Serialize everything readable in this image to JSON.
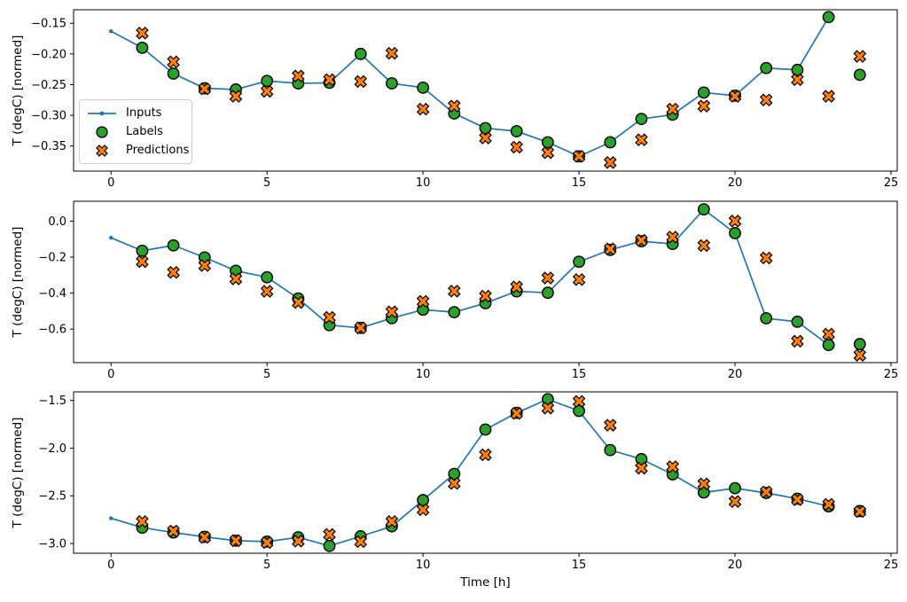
{
  "figure": {
    "background": "#ffffff",
    "xlabel": "Time [h]",
    "x_ticks": [
      "0",
      "5",
      "10",
      "15",
      "20",
      "25"
    ],
    "x_tick_values": [
      0,
      5,
      10,
      15,
      20,
      25
    ],
    "xlim": [
      -1.2,
      25.2
    ],
    "grid": false,
    "legend_position": "upper-left-area of first subplot"
  },
  "colors": {
    "inputs": "#1f77b4",
    "labels": "#2ca02c",
    "predictions": "#ff7f0e",
    "marker_edge": "#000000",
    "spine": "#000000",
    "legend_border": "#cccccc"
  },
  "legend": {
    "items": [
      {
        "label": "Inputs",
        "marker": "line-with-dot",
        "color": "#1f77b4"
      },
      {
        "label": "Labels",
        "marker": "circle",
        "color": "#2ca02c"
      },
      {
        "label": "Predictions",
        "marker": "X",
        "color": "#ff7f0e"
      }
    ]
  },
  "chart_data": [
    {
      "type": "line",
      "ylabel": "T (degC) [normed]",
      "ylim": [
        -0.391,
        -0.128
      ],
      "yticks": [
        -0.15,
        -0.2,
        -0.25,
        -0.3,
        -0.35
      ],
      "ytick_labels": [
        "−0.15",
        "−0.20",
        "−0.25",
        "−0.30",
        "−0.35"
      ],
      "series": [
        {
          "name": "Inputs",
          "type": "line",
          "marker": "dot",
          "color": "#1f77b4",
          "x": [
            0,
            1,
            2,
            3,
            4,
            5,
            6,
            7,
            8,
            9,
            10,
            11,
            12,
            13,
            14,
            15,
            16,
            17,
            18,
            19,
            20,
            21,
            22,
            23
          ],
          "y": [
            -0.163,
            -0.19,
            -0.232,
            -0.256,
            -0.258,
            -0.244,
            -0.248,
            -0.247,
            -0.2,
            -0.248,
            -0.255,
            -0.297,
            -0.321,
            -0.326,
            -0.344,
            -0.367,
            -0.344,
            -0.306,
            -0.299,
            -0.263,
            -0.268,
            -0.223,
            -0.226,
            -0.14
          ]
        },
        {
          "name": "Labels",
          "type": "scatter",
          "marker": "circle",
          "color": "#2ca02c",
          "x": [
            1,
            2,
            3,
            4,
            5,
            6,
            7,
            8,
            9,
            10,
            11,
            12,
            13,
            14,
            15,
            16,
            17,
            18,
            19,
            20,
            21,
            22,
            23,
            24
          ],
          "y": [
            -0.19,
            -0.232,
            -0.256,
            -0.258,
            -0.244,
            -0.248,
            -0.247,
            -0.2,
            -0.248,
            -0.255,
            -0.297,
            -0.321,
            -0.326,
            -0.344,
            -0.367,
            -0.344,
            -0.306,
            -0.299,
            -0.263,
            -0.268,
            -0.223,
            -0.226,
            -0.14,
            -0.234
          ]
        },
        {
          "name": "Predictions",
          "type": "scatter",
          "marker": "X",
          "color": "#ff7f0e",
          "x": [
            1,
            2,
            3,
            4,
            5,
            6,
            7,
            8,
            9,
            10,
            11,
            12,
            13,
            14,
            15,
            16,
            17,
            18,
            19,
            20,
            21,
            22,
            23,
            24
          ],
          "y": [
            -0.166,
            -0.213,
            -0.257,
            -0.269,
            -0.261,
            -0.236,
            -0.242,
            -0.245,
            -0.199,
            -0.29,
            -0.285,
            -0.337,
            -0.352,
            -0.361,
            -0.367,
            -0.377,
            -0.34,
            -0.29,
            -0.285,
            -0.269,
            -0.275,
            -0.242,
            -0.269,
            -0.204
          ]
        }
      ]
    },
    {
      "type": "line",
      "ylabel": "T (degC) [normed]",
      "ylim": [
        -0.786,
        0.11
      ],
      "yticks": [
        0.0,
        -0.2,
        -0.4,
        -0.6
      ],
      "ytick_labels": [
        "0.0",
        "−0.2",
        "−0.4",
        "−0.6"
      ],
      "series": [
        {
          "name": "Inputs",
          "type": "line",
          "marker": "dot",
          "color": "#1f77b4",
          "x": [
            0,
            1,
            2,
            3,
            4,
            5,
            6,
            7,
            8,
            9,
            10,
            11,
            12,
            13,
            14,
            15,
            16,
            17,
            18,
            19,
            20,
            21,
            22,
            23
          ],
          "y": [
            -0.093,
            -0.165,
            -0.135,
            -0.202,
            -0.276,
            -0.312,
            -0.43,
            -0.578,
            -0.593,
            -0.539,
            -0.492,
            -0.506,
            -0.456,
            -0.39,
            -0.398,
            -0.226,
            -0.16,
            -0.112,
            -0.127,
            0.065,
            -0.067,
            -0.54,
            -0.559,
            -0.688
          ]
        },
        {
          "name": "Labels",
          "type": "scatter",
          "marker": "circle",
          "color": "#2ca02c",
          "x": [
            1,
            2,
            3,
            4,
            5,
            6,
            7,
            8,
            9,
            10,
            11,
            12,
            13,
            14,
            15,
            16,
            17,
            18,
            19,
            20,
            21,
            22,
            23,
            24
          ],
          "y": [
            -0.165,
            -0.135,
            -0.202,
            -0.276,
            -0.312,
            -0.43,
            -0.578,
            -0.593,
            -0.539,
            -0.492,
            -0.506,
            -0.456,
            -0.39,
            -0.398,
            -0.226,
            -0.16,
            -0.112,
            -0.127,
            0.065,
            -0.067,
            -0.54,
            -0.559,
            -0.688,
            -0.683
          ]
        },
        {
          "name": "Predictions",
          "type": "scatter",
          "marker": "X",
          "color": "#ff7f0e",
          "x": [
            1,
            2,
            3,
            4,
            5,
            6,
            7,
            8,
            9,
            10,
            11,
            12,
            13,
            14,
            15,
            16,
            17,
            18,
            19,
            20,
            21,
            22,
            23,
            24
          ],
          "y": [
            -0.225,
            -0.285,
            -0.247,
            -0.321,
            -0.39,
            -0.452,
            -0.535,
            -0.593,
            -0.504,
            -0.446,
            -0.389,
            -0.417,
            -0.366,
            -0.316,
            -0.325,
            -0.155,
            -0.107,
            -0.089,
            -0.136,
            0.0,
            -0.205,
            -0.667,
            -0.628,
            -0.745
          ]
        }
      ]
    },
    {
      "type": "line",
      "ylabel": "T (degC) [normed]",
      "ylim": [
        -3.102,
        -1.41
      ],
      "yticks": [
        -1.5,
        -2.0,
        -2.5,
        -3.0
      ],
      "ytick_labels": [
        "−1.5",
        "−2.0",
        "−2.5",
        "−3.0"
      ],
      "series": [
        {
          "name": "Inputs",
          "type": "line",
          "marker": "dot",
          "color": "#1f77b4",
          "x": [
            0,
            1,
            2,
            3,
            4,
            5,
            6,
            7,
            8,
            9,
            10,
            11,
            12,
            13,
            14,
            15,
            16,
            17,
            18,
            19,
            20,
            21,
            22,
            23
          ],
          "y": [
            -2.735,
            -2.833,
            -2.885,
            -2.93,
            -2.97,
            -2.98,
            -2.935,
            -3.025,
            -2.925,
            -2.82,
            -2.545,
            -2.27,
            -1.805,
            -1.63,
            -1.487,
            -1.61,
            -2.02,
            -2.115,
            -2.275,
            -2.465,
            -2.42,
            -2.47,
            -2.53,
            -2.61
          ]
        },
        {
          "name": "Labels",
          "type": "scatter",
          "marker": "circle",
          "color": "#2ca02c",
          "x": [
            1,
            2,
            3,
            4,
            5,
            6,
            7,
            8,
            9,
            10,
            11,
            12,
            13,
            14,
            15,
            16,
            17,
            18,
            19,
            20,
            21,
            22,
            23,
            24
          ],
          "y": [
            -2.833,
            -2.885,
            -2.93,
            -2.97,
            -2.98,
            -2.935,
            -3.025,
            -2.925,
            -2.82,
            -2.545,
            -2.27,
            -1.805,
            -1.63,
            -1.487,
            -1.61,
            -2.02,
            -2.115,
            -2.275,
            -2.465,
            -2.42,
            -2.47,
            -2.53,
            -2.61,
            -2.66
          ]
        },
        {
          "name": "Predictions",
          "type": "scatter",
          "marker": "X",
          "color": "#ff7f0e",
          "x": [
            1,
            2,
            3,
            4,
            5,
            6,
            7,
            8,
            9,
            10,
            11,
            12,
            13,
            14,
            15,
            16,
            17,
            18,
            19,
            20,
            21,
            22,
            23,
            24
          ],
          "y": [
            -2.77,
            -2.87,
            -2.935,
            -2.97,
            -2.99,
            -2.975,
            -2.905,
            -2.98,
            -2.77,
            -2.645,
            -2.37,
            -2.07,
            -1.635,
            -1.58,
            -1.51,
            -1.76,
            -2.21,
            -2.195,
            -2.375,
            -2.56,
            -2.46,
            -2.54,
            -2.59,
            -2.665
          ]
        }
      ]
    }
  ]
}
